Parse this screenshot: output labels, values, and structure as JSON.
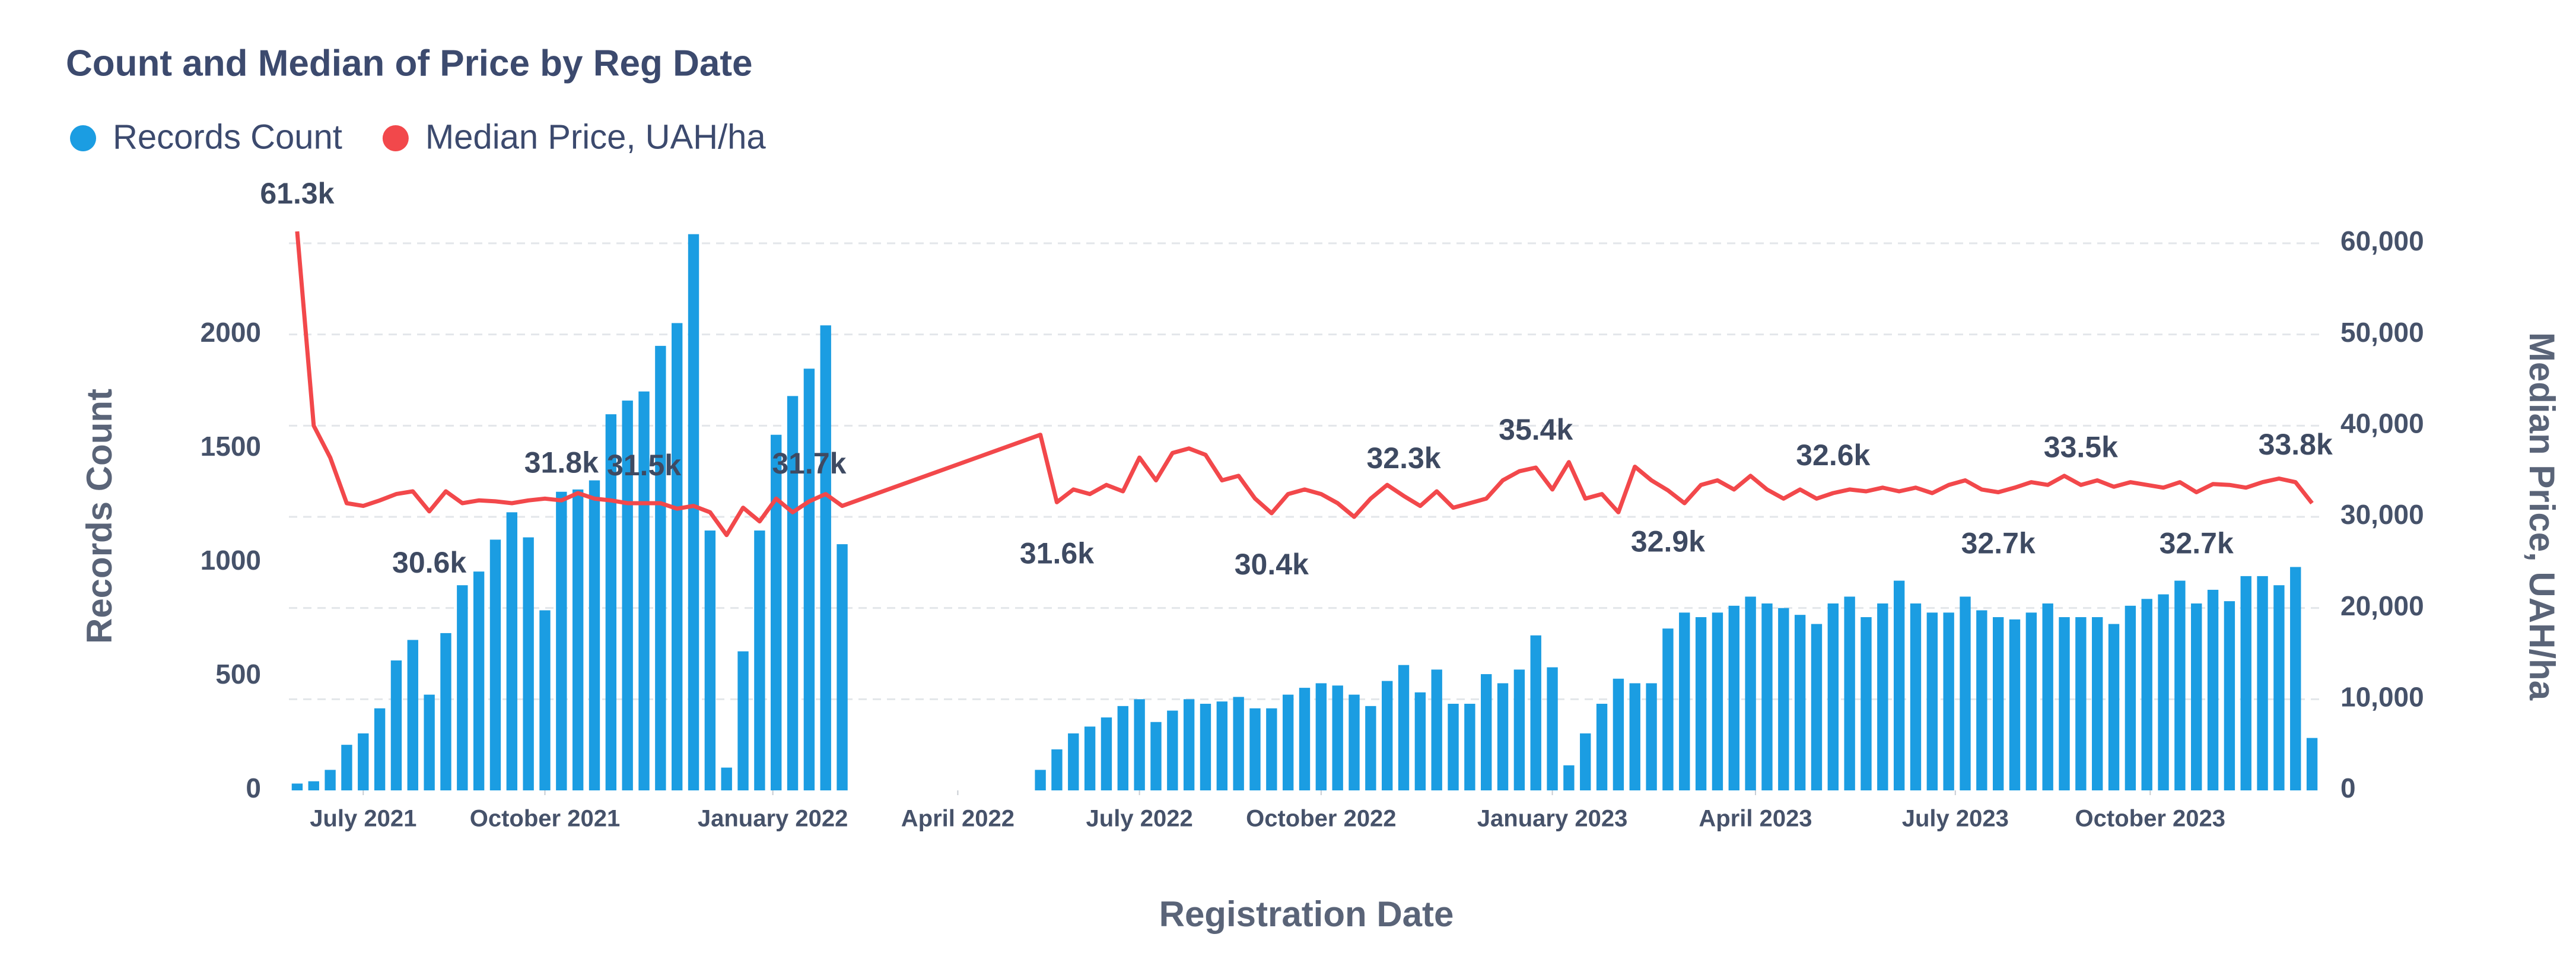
{
  "chart_data": {
    "type": "bar",
    "title": "Count and Median of Price by Reg Date",
    "xlabel": "Registration Date",
    "ylabel": "Records Count",
    "y2label": "Median Price, UAH/ha",
    "xlim": [
      -0.5,
      122.5
    ],
    "xticks": [
      {
        "value": 4,
        "label": "July 2021"
      },
      {
        "value": 15,
        "label": "October 2021"
      },
      {
        "value": 28.8,
        "label": "January 2022"
      },
      {
        "value": 40,
        "label": "April 2022"
      },
      {
        "value": 51,
        "label": "July 2022"
      },
      {
        "value": 62,
        "label": "October 2022"
      },
      {
        "value": 76,
        "label": "January 2023"
      },
      {
        "value": 88.3,
        "label": "April 2023"
      },
      {
        "value": 100.4,
        "label": "July 2023"
      },
      {
        "value": 112.2,
        "label": "October 2023"
      }
    ],
    "ylim": [
      0,
      2400
    ],
    "yticks": [
      0,
      500,
      1000,
      1500,
      2000
    ],
    "y2lim": [
      0,
      60000
    ],
    "y2ticks": [
      0,
      {
        "value": 10000,
        "label": "10,000"
      },
      {
        "value": 20000,
        "label": "20,000"
      },
      {
        "value": 30000,
        "label": "30,000"
      },
      {
        "value": 40000,
        "label": "40,000"
      },
      {
        "value": 50000,
        "label": "50,000"
      },
      {
        "value": 60000,
        "label": "60,000"
      }
    ],
    "grid": true,
    "x": [
      0,
      1,
      2,
      3,
      4,
      5,
      6,
      7,
      8,
      9,
      10,
      11,
      12,
      13,
      14,
      15,
      16,
      17,
      18,
      19,
      20,
      21,
      22,
      23,
      24,
      25,
      26,
      27,
      28,
      29,
      30,
      31,
      32,
      33,
      45,
      46,
      47,
      48,
      49,
      50,
      51,
      52,
      53,
      54,
      55,
      56,
      57,
      58,
      59,
      60,
      61,
      62,
      63,
      64,
      65,
      66,
      67,
      68,
      69,
      70,
      71,
      72,
      73,
      74,
      75,
      76,
      77,
      78,
      79,
      80,
      81,
      82,
      83,
      84,
      85,
      86,
      87,
      88,
      89,
      90,
      91,
      92,
      93,
      94,
      95,
      96,
      97,
      98,
      99,
      100,
      101,
      102,
      103,
      104,
      105,
      106,
      107,
      108,
      109,
      110,
      111,
      112,
      113,
      114,
      115,
      116,
      117,
      118,
      119,
      120,
      121,
      122
    ],
    "series": [
      {
        "name": "Records Count",
        "type": "bar",
        "color": "#1b9de2",
        "values": [
          30,
          40,
          90,
          200,
          250,
          360,
          570,
          660,
          420,
          690,
          900,
          960,
          1100,
          1220,
          1110,
          790,
          1310,
          1320,
          1360,
          1650,
          1710,
          1750,
          1950,
          2050,
          2440,
          1140,
          100,
          610,
          1140,
          1560,
          1730,
          1850,
          2040,
          1080,
          90,
          180,
          250,
          280,
          320,
          370,
          400,
          300,
          350,
          400,
          380,
          390,
          410,
          360,
          360,
          420,
          450,
          470,
          460,
          420,
          370,
          480,
          550,
          430,
          530,
          380,
          380,
          510,
          470,
          530,
          680,
          540,
          110,
          250,
          380,
          490,
          470,
          470,
          710,
          780,
          760,
          780,
          810,
          850,
          820,
          800,
          770,
          730,
          820,
          850,
          760,
          820,
          920,
          820,
          780,
          780,
          850,
          790,
          760,
          750,
          780,
          820,
          760,
          760,
          760,
          730,
          810,
          840,
          860,
          920,
          820,
          880,
          830,
          940,
          940,
          900,
          980,
          230
        ]
      },
      {
        "name": "Median Price, UAH/ha",
        "type": "line",
        "axis": "y2",
        "color": "#f2484b",
        "values": [
          61300,
          40000,
          36500,
          31500,
          31200,
          31800,
          32500,
          32800,
          30600,
          32800,
          31500,
          31800,
          31700,
          31500,
          31800,
          32000,
          31800,
          32600,
          32000,
          31800,
          31500,
          31500,
          31500,
          30900,
          31200,
          30500,
          28000,
          31000,
          29500,
          32000,
          30500,
          31700,
          32500,
          31200,
          39000,
          31600,
          33000,
          32500,
          33500,
          32800,
          36500,
          34000,
          37000,
          37500,
          36800,
          34000,
          34500,
          32000,
          30400,
          32500,
          33000,
          32500,
          31500,
          30000,
          32000,
          33500,
          32300,
          31200,
          32800,
          31000,
          31500,
          32000,
          34000,
          35000,
          35400,
          33000,
          36000,
          32000,
          32500,
          30500,
          35500,
          34000,
          32900,
          31500,
          33500,
          34000,
          33000,
          34500,
          33000,
          32000,
          33000,
          32000,
          32600,
          33000,
          32800,
          33200,
          32800,
          33200,
          32600,
          33500,
          34000,
          33000,
          32700,
          33200,
          33800,
          33500,
          34500,
          33500,
          34000,
          33300,
          33800,
          33500,
          33200,
          33800,
          32700,
          33600,
          33500,
          33200,
          33800,
          34200,
          33800,
          31500
        ],
        "value_labels": [
          "61.3k",
          null,
          null,
          null,
          null,
          null,
          null,
          null,
          "30.6k",
          null,
          null,
          null,
          null,
          null,
          null,
          null,
          "31.8k",
          null,
          null,
          null,
          null,
          "31.5k",
          null,
          null,
          null,
          null,
          null,
          null,
          null,
          null,
          null,
          "31.7k",
          null,
          null,
          null,
          "31.6k",
          null,
          null,
          null,
          null,
          null,
          null,
          null,
          null,
          null,
          null,
          null,
          null,
          "30.4k",
          null,
          null,
          null,
          null,
          null,
          null,
          null,
          "32.3k",
          null,
          null,
          null,
          null,
          null,
          null,
          null,
          "35.4k",
          null,
          null,
          null,
          null,
          null,
          null,
          null,
          "32.9k",
          null,
          null,
          null,
          null,
          null,
          null,
          null,
          null,
          null,
          "32.6k",
          null,
          null,
          null,
          null,
          null,
          null,
          null,
          null,
          null,
          "32.7k",
          null,
          null,
          null,
          null,
          "33.5k",
          null,
          null,
          null,
          null,
          null,
          null,
          "32.7k",
          null,
          null,
          null,
          null,
          null,
          "33.8k",
          null
        ]
      }
    ]
  }
}
